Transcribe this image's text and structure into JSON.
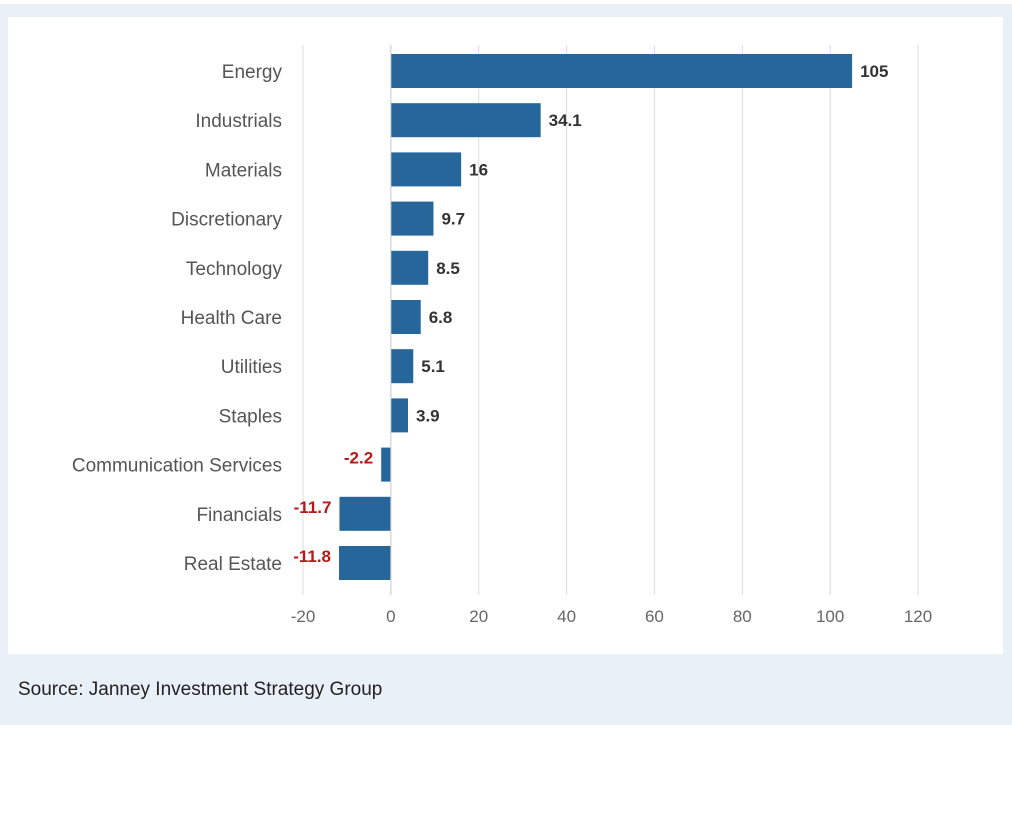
{
  "chart_data": {
    "type": "bar",
    "orientation": "horizontal",
    "categories": [
      "Energy",
      "Industrials",
      "Materials",
      "Discretionary",
      "Technology",
      "Health Care",
      "Utilities",
      "Staples",
      "Communication Services",
      "Financials",
      "Real Estate"
    ],
    "values": [
      105,
      34.1,
      16,
      9.7,
      8.5,
      6.8,
      5.1,
      3.9,
      -2.2,
      -11.7,
      -11.8
    ],
    "value_labels": [
      "105",
      "34.1",
      "16",
      "9.7",
      "8.5",
      "6.8",
      "5.1",
      "3.9",
      "-2.2",
      "-11.7",
      "-11.8"
    ],
    "xlim": [
      -20,
      120
    ],
    "xticks": [
      -20,
      0,
      20,
      40,
      60,
      80,
      100,
      120
    ],
    "grid": "vertical",
    "title": "",
    "xlabel": "",
    "ylabel": ""
  },
  "colors": {
    "bar": "#27669a",
    "positive_label": "#333333",
    "negative_label": "#b31b1b",
    "grid": "#dcdcdc",
    "background_band": "#eaf0f8"
  },
  "source": "Source: Janney Investment Strategy Group"
}
